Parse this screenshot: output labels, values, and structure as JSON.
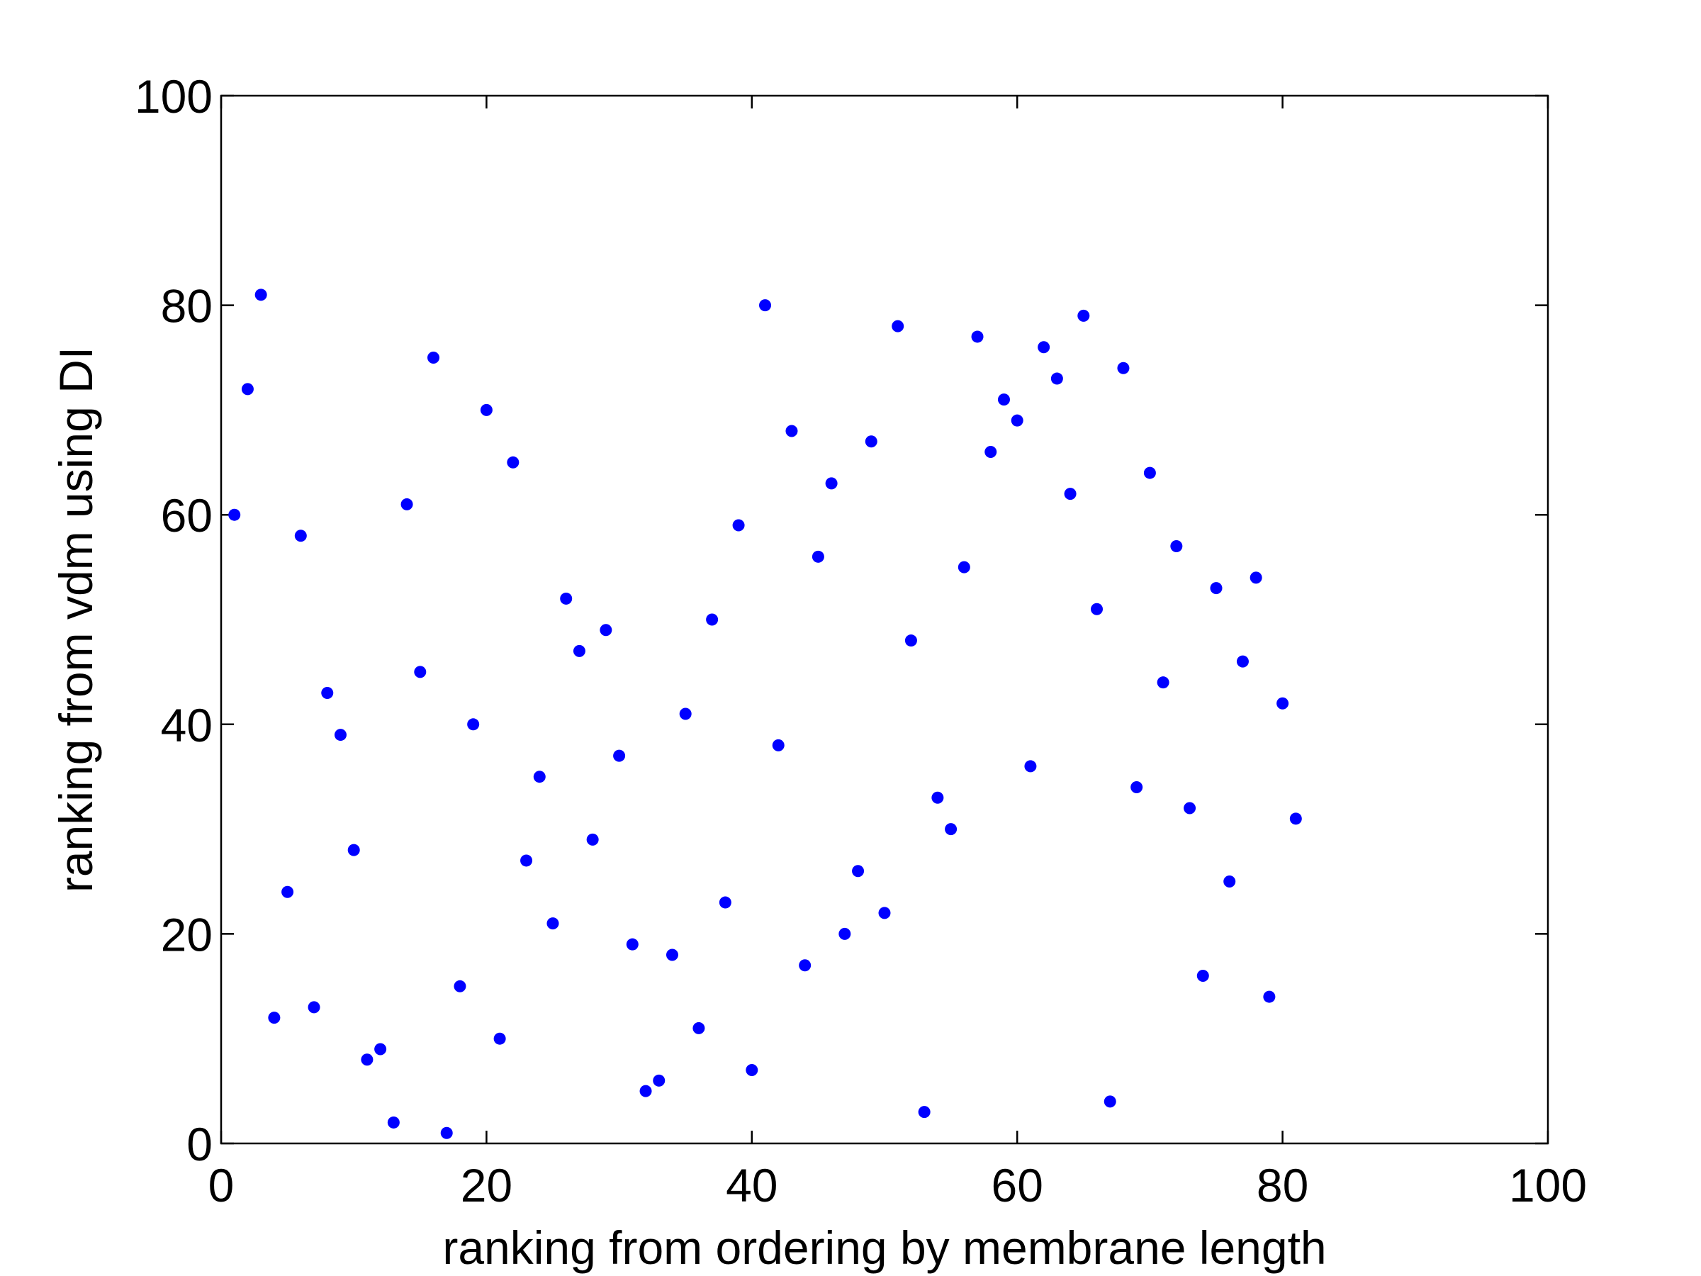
{
  "chart_data": {
    "type": "scatter",
    "title": "",
    "xlabel": "ranking from ordering by membrane length",
    "ylabel": "ranking from vdm using DI",
    "xlim": [
      0,
      100
    ],
    "ylim": [
      0,
      100
    ],
    "xticks": [
      0,
      20,
      40,
      60,
      80,
      100
    ],
    "yticks": [
      0,
      20,
      40,
      60,
      80,
      100
    ],
    "xtick_labels": [
      "0",
      "20",
      "40",
      "60",
      "80",
      "100"
    ],
    "ytick_labels": [
      "0",
      "20",
      "40",
      "60",
      "80",
      "100"
    ],
    "grid": false,
    "marker_color": "#0000ff",
    "points": [
      [
        1,
        60
      ],
      [
        2,
        72
      ],
      [
        3,
        81
      ],
      [
        4,
        12
      ],
      [
        5,
        24
      ],
      [
        6,
        58
      ],
      [
        7,
        13
      ],
      [
        8,
        43
      ],
      [
        9,
        39
      ],
      [
        10,
        28
      ],
      [
        11,
        8
      ],
      [
        12,
        9
      ],
      [
        13,
        2
      ],
      [
        14,
        61
      ],
      [
        15,
        45
      ],
      [
        16,
        75
      ],
      [
        17,
        1
      ],
      [
        18,
        15
      ],
      [
        19,
        40
      ],
      [
        20,
        70
      ],
      [
        21,
        10
      ],
      [
        22,
        65
      ],
      [
        23,
        27
      ],
      [
        24,
        35
      ],
      [
        25,
        21
      ],
      [
        26,
        52
      ],
      [
        27,
        47
      ],
      [
        28,
        29
      ],
      [
        29,
        49
      ],
      [
        30,
        37
      ],
      [
        31,
        19
      ],
      [
        32,
        5
      ],
      [
        33,
        6
      ],
      [
        34,
        18
      ],
      [
        35,
        41
      ],
      [
        36,
        11
      ],
      [
        37,
        50
      ],
      [
        38,
        23
      ],
      [
        39,
        59
      ],
      [
        40,
        7
      ],
      [
        41,
        80
      ],
      [
        42,
        38
      ],
      [
        43,
        68
      ],
      [
        44,
        17
      ],
      [
        45,
        56
      ],
      [
        46,
        63
      ],
      [
        47,
        20
      ],
      [
        48,
        26
      ],
      [
        49,
        67
      ],
      [
        50,
        22
      ],
      [
        51,
        78
      ],
      [
        52,
        48
      ],
      [
        53,
        3
      ],
      [
        54,
        33
      ],
      [
        55,
        30
      ],
      [
        56,
        55
      ],
      [
        57,
        77
      ],
      [
        58,
        66
      ],
      [
        59,
        71
      ],
      [
        60,
        69
      ],
      [
        61,
        36
      ],
      [
        62,
        76
      ],
      [
        63,
        73
      ],
      [
        64,
        62
      ],
      [
        65,
        79
      ],
      [
        66,
        51
      ],
      [
        67,
        4
      ],
      [
        68,
        74
      ],
      [
        69,
        34
      ],
      [
        70,
        64
      ],
      [
        71,
        44
      ],
      [
        72,
        57
      ],
      [
        73,
        32
      ],
      [
        74,
        16
      ],
      [
        75,
        53
      ],
      [
        76,
        25
      ],
      [
        77,
        46
      ],
      [
        78,
        54
      ],
      [
        79,
        14
      ],
      [
        80,
        42
      ],
      [
        81,
        31
      ]
    ]
  }
}
